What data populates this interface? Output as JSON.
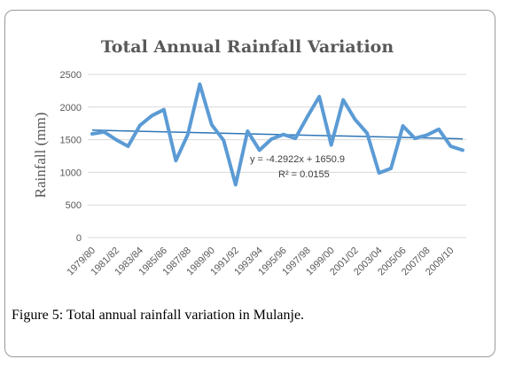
{
  "chart_data": {
    "type": "line",
    "title": "Total Annual Rainfall Variation",
    "ylabel": "Rainfall (mm)",
    "xlabel": "",
    "ylim": [
      0,
      2500
    ],
    "yticks": [
      0,
      500,
      1000,
      1500,
      2000,
      2500
    ],
    "grid": true,
    "x": [
      "1979/80",
      "1980/81",
      "1981/82",
      "1982/83",
      "1983/84",
      "1984/85",
      "1985/86",
      "1986/87",
      "1987/88",
      "1988/89",
      "1989/90",
      "1990/91",
      "1991/92",
      "1992/93",
      "1993/94",
      "1994/95",
      "1995/96",
      "1996/97",
      "1997/98",
      "1998/99",
      "1999/00",
      "2000/01",
      "2001/02",
      "2002/03",
      "2003/04",
      "2004/05",
      "2005/06",
      "2006/07",
      "2007/08",
      "2008/09",
      "2009/10",
      "2010/11"
    ],
    "xtick_labels": [
      "1979/80",
      "1981/82",
      "1983/84",
      "1985/86",
      "1987/88",
      "1989/90",
      "1991/92",
      "1993/94",
      "1995/96",
      "1997/98",
      "1999/00",
      "2001/02",
      "2003/04",
      "2005/06",
      "2007/08",
      "2009/10"
    ],
    "series": [
      {
        "values": [
          1590,
          1620,
          1500,
          1400,
          1720,
          1870,
          1960,
          1180,
          1580,
          2350,
          1730,
          1490,
          810,
          1630,
          1340,
          1510,
          1580,
          1520,
          1850,
          2160,
          1420,
          2110,
          1810,
          1600,
          990,
          1060,
          1710,
          1520,
          1570,
          1660,
          1400,
          1340
        ],
        "color": "#5b9bd5"
      }
    ],
    "trendline": {
      "slope": -4.2922,
      "intercept": 1650.9,
      "color": "#2e75b6",
      "equation": "y = -4.2922x + 1650.9",
      "r_squared": "R² = 0.0155"
    }
  },
  "caption": {
    "label": "Figure 5:",
    "text": " Total annual rainfall variation in Mulanje."
  }
}
